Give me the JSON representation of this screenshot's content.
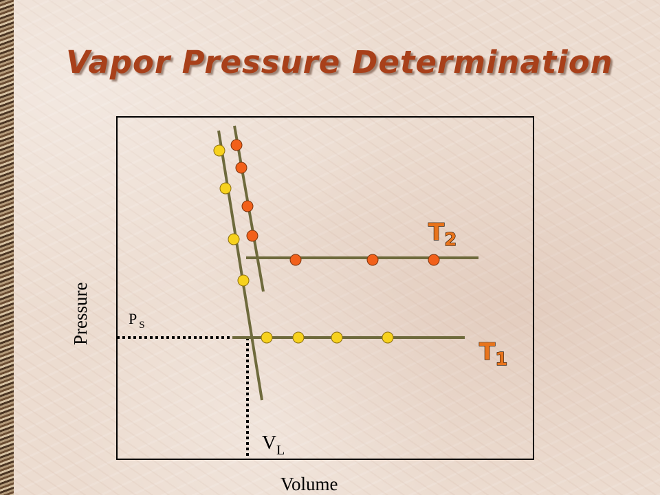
{
  "slide": {
    "title": "Vapor Pressure Determination"
  },
  "diagram": {
    "y_axis_label": "Pressure",
    "x_axis_label": "Volume",
    "ps_label": "P",
    "ps_subscript": "S",
    "vl_label": "V",
    "vl_subscript": "L",
    "curves": [
      {
        "label": "T",
        "subscript": "2",
        "point_color": "#f2601a"
      },
      {
        "label": "T",
        "subscript": "1",
        "point_color": "#f7d21e"
      }
    ],
    "line_color": "#6e6a3c"
  }
}
